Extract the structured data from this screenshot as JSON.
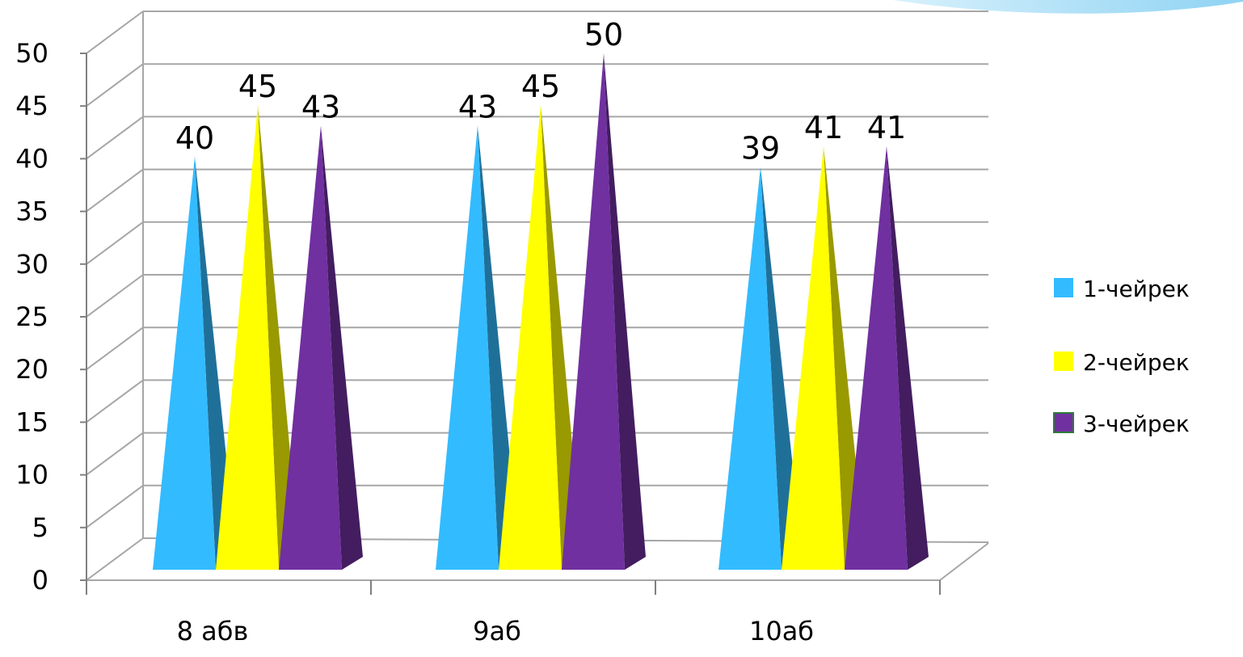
{
  "chart_data": {
    "type": "bar",
    "style": "3d-pyramid",
    "categories": [
      "8 абв",
      "9аб",
      "10аб"
    ],
    "series": [
      {
        "name": "1-чейрек",
        "color": "#33BBFF",
        "values": [
          40,
          43,
          39
        ]
      },
      {
        "name": "2-чейрек",
        "color": "#FFFF00",
        "values": [
          45,
          45,
          41
        ]
      },
      {
        "name": "3-чейрек",
        "color": "#7030A0",
        "values": [
          43,
          50,
          41
        ]
      }
    ],
    "value_labels": [
      [
        "40",
        "43",
        "39"
      ],
      [
        "45",
        "45",
        "41"
      ],
      [
        "43",
        "50",
        "41"
      ]
    ],
    "y_ticks": [
      "0",
      "5",
      "10",
      "15",
      "20",
      "25",
      "30",
      "35",
      "40",
      "45",
      "50"
    ],
    "ylim": [
      0,
      50
    ],
    "grid": true,
    "legend_position": "right",
    "title": "",
    "xlabel": "",
    "ylabel": ""
  },
  "decoration": {
    "corner_swoosh_color": "#A9DDF5"
  }
}
